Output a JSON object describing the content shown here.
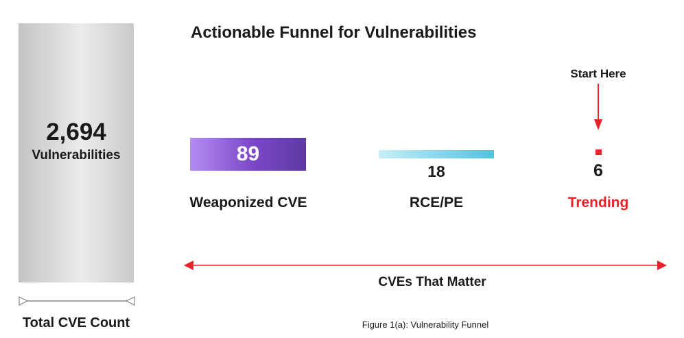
{
  "title": "Actionable Funnel for Vulnerabilities",
  "total": {
    "value": "2,694",
    "unit": "Vulnerabilities",
    "caption": "Total CVE Count"
  },
  "stages": {
    "weaponized": {
      "value": "89",
      "label": "Weaponized CVE",
      "color": "#7a47c7"
    },
    "rce_pe": {
      "value": "18",
      "label": "RCE/PE",
      "color": "#4fc3df"
    },
    "trending": {
      "value": "6",
      "label": "Trending",
      "color": "#e8222a"
    }
  },
  "start_here": "Start Here",
  "matter_caption": "CVEs That Matter",
  "figure_caption": "Figure 1(a): Vulnerability Funnel",
  "colors": {
    "accent_red": "#e8222a",
    "total_bar": "#d9d9d9",
    "text": "#1a1a1a"
  }
}
